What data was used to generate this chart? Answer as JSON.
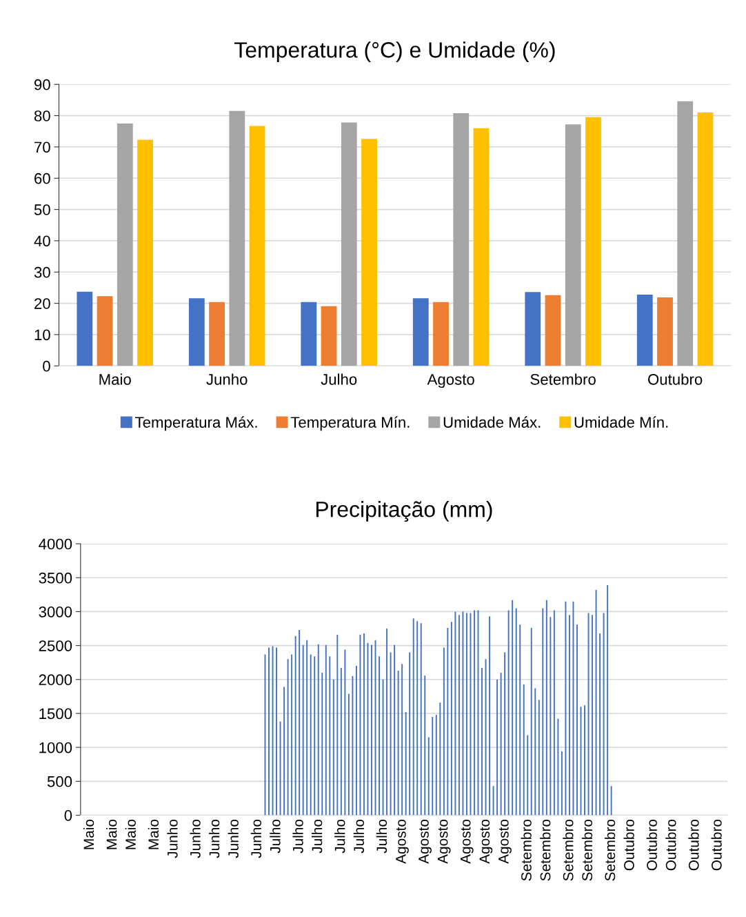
{
  "chart_data": [
    {
      "type": "bar",
      "title": "Temperatura (°C) e Umidade (%)",
      "categories": [
        "Maio",
        "Junho",
        "Julho",
        "Agosto",
        "Setembro",
        "Outubro"
      ],
      "series": [
        {
          "name": "Temperatura Máx.",
          "color": "#4472c4",
          "values": [
            23.7,
            21.6,
            20.4,
            21.6,
            23.6,
            22.8
          ]
        },
        {
          "name": "Temperatura Mín.",
          "color": "#ed7d31",
          "values": [
            22.3,
            20.4,
            19.1,
            20.4,
            22.6,
            21.9
          ]
        },
        {
          "name": "Umidade Máx.",
          "color": "#a5a5a5",
          "values": [
            77.5,
            81.5,
            77.8,
            80.8,
            77.2,
            84.6
          ]
        },
        {
          "name": "Umidade Mín.",
          "color": "#ffc000",
          "values": [
            72.3,
            76.7,
            72.6,
            76.0,
            79.5,
            81.0
          ]
        }
      ],
      "ylim": [
        0,
        90
      ],
      "yticks": [
        0,
        10,
        20,
        30,
        40,
        50,
        60,
        70,
        80,
        90
      ],
      "grid": "y",
      "legend": "bottom"
    },
    {
      "type": "bar",
      "title": "Precipitação (mm)",
      "categories": [
        null,
        null,
        "Maio",
        null,
        null,
        null,
        null,
        null,
        "Maio",
        null,
        null,
        null,
        null,
        "Maio",
        null,
        null,
        null,
        null,
        null,
        "Maio",
        null,
        null,
        null,
        null,
        "Junho",
        null,
        null,
        null,
        null,
        null,
        "Junho",
        null,
        null,
        null,
        null,
        "Junho",
        null,
        null,
        null,
        null,
        "Junho",
        null,
        null,
        null,
        null,
        null,
        "Junho",
        null,
        null,
        null,
        null,
        "Julho",
        null,
        null,
        null,
        null,
        null,
        "Julho",
        null,
        null,
        null,
        null,
        "Julho",
        null,
        null,
        null,
        null,
        null,
        "Julho",
        null,
        null,
        null,
        null,
        "Julho",
        null,
        null,
        null,
        null,
        null,
        "Julho",
        null,
        null,
        null,
        null,
        "Agosto",
        null,
        null,
        null,
        null,
        null,
        "Agosto",
        null,
        null,
        null,
        null,
        "Agosto",
        null,
        null,
        null,
        null,
        null,
        "Agosto",
        null,
        null,
        null,
        null,
        "Agosto",
        null,
        null,
        null,
        null,
        "Agosto",
        null,
        null,
        null,
        null,
        null,
        "Setembro",
        null,
        null,
        null,
        null,
        "Setembro",
        null,
        null,
        null,
        null,
        null,
        "Setembro",
        null,
        null,
        null,
        null,
        "Setembro",
        null,
        null,
        null,
        null,
        null,
        "Setembro",
        null,
        null,
        null,
        null,
        "Outubro",
        null,
        null,
        null,
        null,
        null,
        "Outubro",
        null,
        null,
        null,
        null,
        "Outubro",
        null,
        null,
        null,
        null,
        null,
        "Outubro",
        null,
        null,
        null,
        null,
        null,
        "Outubro",
        null,
        null
      ],
      "values": [
        0,
        0,
        0,
        0,
        0,
        0,
        0,
        0,
        0,
        0,
        0,
        0,
        0,
        0,
        0,
        0,
        0,
        0,
        0,
        0,
        0,
        0,
        0,
        0,
        0,
        0,
        0,
        0,
        0,
        0,
        0,
        0,
        0,
        0,
        0,
        0,
        0,
        0,
        0,
        0,
        0,
        0,
        0,
        0,
        0,
        0,
        0,
        0,
        2370,
        2470,
        2490,
        2470,
        1380,
        1890,
        2300,
        2370,
        2640,
        2730,
        2510,
        2580,
        2370,
        2340,
        2520,
        2100,
        2510,
        2340,
        2000,
        2660,
        2170,
        2440,
        1790,
        2050,
        2200,
        2660,
        2680,
        2540,
        2510,
        2580,
        2340,
        2000,
        2750,
        2400,
        2510,
        2130,
        2230,
        1520,
        2400,
        2900,
        2860,
        2830,
        2060,
        1150,
        1450,
        1480,
        1660,
        2470,
        2760,
        2850,
        3000,
        2950,
        3000,
        2980,
        2980,
        3020,
        3020,
        2170,
        2300,
        2930,
        430,
        2000,
        2100,
        2400,
        3020,
        3170,
        3050,
        2810,
        1930,
        1180,
        2760,
        1870,
        1700,
        3050,
        3170,
        2920,
        3020,
        1420,
        940,
        3150,
        2950,
        3150,
        2810,
        1600,
        1620,
        2980,
        2950,
        3320,
        2680,
        2980,
        3390,
        430,
        0,
        0,
        0,
        0,
        0,
        0,
        0,
        0,
        0,
        0,
        0,
        0,
        0,
        0,
        0,
        0,
        0,
        0,
        0,
        0,
        0,
        0,
        0,
        0,
        0,
        0,
        0,
        0,
        0,
        0
      ],
      "color": "#4472c4",
      "ylim": [
        0,
        4000
      ],
      "yticks": [
        0,
        500,
        1000,
        1500,
        2000,
        2500,
        3000,
        3500,
        4000
      ],
      "grid": "y"
    }
  ]
}
